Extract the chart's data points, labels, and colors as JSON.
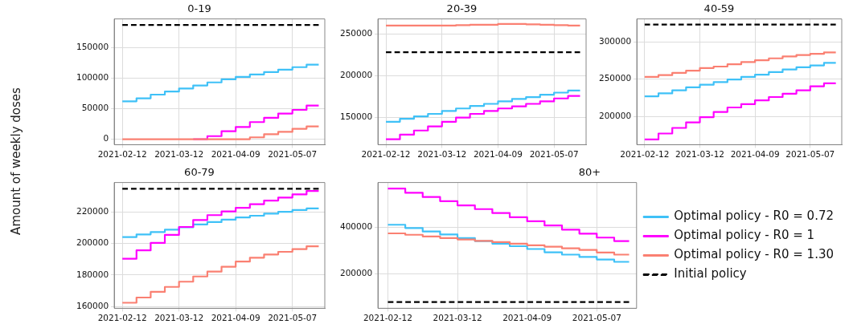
{
  "chart_data": [
    {
      "type": "step",
      "title": "0-19",
      "ylabel": "Amount of weekly doses",
      "x": [
        "2021-02-12",
        "2021-02-19",
        "2021-02-26",
        "2021-03-05",
        "2021-03-12",
        "2021-03-19",
        "2021-03-26",
        "2021-04-02",
        "2021-04-09",
        "2021-04-16",
        "2021-04-23",
        "2021-04-30",
        "2021-05-07",
        "2021-05-14",
        "2021-05-20"
      ],
      "series": [
        {
          "color": "#3fc1f7",
          "values": [
            62000,
            67000,
            73000,
            78000,
            83000,
            88000,
            93000,
            98000,
            102000,
            106000,
            110000,
            114000,
            118000,
            122000,
            122000
          ]
        },
        {
          "color": "#ff00ff",
          "values": [
            null,
            null,
            null,
            null,
            null,
            0,
            5000,
            13000,
            20000,
            28000,
            35000,
            42000,
            48000,
            55000,
            55000
          ]
        },
        {
          "color": "#fa8072",
          "values": [
            0,
            0,
            0,
            0,
            0,
            0,
            0,
            0,
            0,
            3000,
            8000,
            12000,
            17000,
            21000,
            21000
          ]
        },
        {
          "type": "line",
          "line_style": "dashed",
          "color": "#000000",
          "x": [
            "2021-02-12",
            "2021-05-20"
          ],
          "values": [
            187000,
            187000
          ]
        }
      ],
      "xlim": [
        "2021-02-08",
        "2021-05-23"
      ],
      "xticks": [
        "2021-02-12",
        "2021-03-12",
        "2021-04-09",
        "2021-05-07"
      ],
      "ylim": [
        -9000,
        197000
      ],
      "yticks": [
        0,
        50000,
        100000,
        150000
      ],
      "grid": true,
      "legend": false
    },
    {
      "type": "step",
      "title": "20-39",
      "x": [
        "2021-02-12",
        "2021-02-19",
        "2021-02-26",
        "2021-03-05",
        "2021-03-12",
        "2021-03-19",
        "2021-03-26",
        "2021-04-02",
        "2021-04-09",
        "2021-04-16",
        "2021-04-23",
        "2021-04-30",
        "2021-05-07",
        "2021-05-14",
        "2021-05-20"
      ],
      "series": [
        {
          "color": "#3fc1f7",
          "values": [
            144500,
            148000,
            151000,
            154000,
            157500,
            160500,
            163500,
            166000,
            169000,
            172000,
            174000,
            177000,
            179500,
            182000,
            182000
          ]
        },
        {
          "color": "#ff00ff",
          "values": [
            123500,
            129000,
            134000,
            139000,
            144500,
            149500,
            154000,
            157500,
            160500,
            163000,
            166000,
            169000,
            172500,
            175500,
            175500
          ]
        },
        {
          "color": "#fa8072",
          "values": [
            260000,
            260000,
            260000,
            260000,
            260000,
            260500,
            261000,
            261000,
            262000,
            262000,
            261500,
            261000,
            260500,
            260000,
            260000
          ]
        },
        {
          "type": "line",
          "line_style": "dashed",
          "color": "#000000",
          "x": [
            "2021-02-12",
            "2021-05-20"
          ],
          "values": [
            228000,
            228000
          ]
        }
      ],
      "xlim": [
        "2021-02-08",
        "2021-05-23"
      ],
      "xticks": [
        "2021-02-12",
        "2021-03-12",
        "2021-04-09",
        "2021-05-07"
      ],
      "ylim": [
        117000,
        268000
      ],
      "yticks": [
        150000,
        200000,
        250000
      ],
      "grid": true,
      "legend": false
    },
    {
      "type": "step",
      "title": "40-59",
      "x": [
        "2021-02-12",
        "2021-02-19",
        "2021-02-26",
        "2021-03-05",
        "2021-03-12",
        "2021-03-19",
        "2021-03-26",
        "2021-04-02",
        "2021-04-09",
        "2021-04-16",
        "2021-04-23",
        "2021-04-30",
        "2021-05-07",
        "2021-05-14",
        "2021-05-20"
      ],
      "series": [
        {
          "color": "#3fc1f7",
          "values": [
            227000,
            231000,
            235000,
            239000,
            242500,
            246000,
            249500,
            253000,
            256000,
            259500,
            263000,
            266000,
            268500,
            272000,
            272000
          ]
        },
        {
          "color": "#ff00ff",
          "values": [
            169000,
            177000,
            184500,
            192000,
            199000,
            206000,
            212000,
            216500,
            221500,
            226000,
            230500,
            235000,
            240500,
            244500,
            244500
          ]
        },
        {
          "color": "#fa8072",
          "values": [
            253000,
            255500,
            258500,
            261500,
            265000,
            267000,
            270000,
            273000,
            275500,
            278000,
            280500,
            282500,
            284000,
            286000,
            286000
          ]
        },
        {
          "type": "line",
          "line_style": "dashed",
          "color": "#000000",
          "x": [
            "2021-02-12",
            "2021-05-20"
          ],
          "values": [
            323500,
            323500
          ]
        }
      ],
      "xlim": [
        "2021-02-08",
        "2021-05-23"
      ],
      "xticks": [
        "2021-02-12",
        "2021-03-12",
        "2021-04-09",
        "2021-05-07"
      ],
      "ylim": [
        162000,
        331000
      ],
      "yticks": [
        200000,
        250000,
        300000
      ],
      "grid": true,
      "legend": false
    },
    {
      "type": "step",
      "title": "60-79",
      "x": [
        "2021-02-12",
        "2021-02-19",
        "2021-02-26",
        "2021-03-05",
        "2021-03-12",
        "2021-03-19",
        "2021-03-26",
        "2021-04-02",
        "2021-04-09",
        "2021-04-16",
        "2021-04-23",
        "2021-04-30",
        "2021-05-07",
        "2021-05-14",
        "2021-05-20"
      ],
      "series": [
        {
          "color": "#3fc1f7",
          "values": [
            204000,
            205700,
            207200,
            208700,
            210200,
            212000,
            213500,
            215000,
            216400,
            217500,
            218800,
            220000,
            221100,
            222100,
            222100
          ]
        },
        {
          "color": "#ff00ff",
          "values": [
            190300,
            195600,
            200300,
            205400,
            210400,
            214800,
            217900,
            220200,
            222500,
            224800,
            227100,
            229000,
            231000,
            233200,
            233200
          ]
        },
        {
          "color": "#fa8072",
          "values": [
            162500,
            165800,
            169400,
            172500,
            175800,
            179100,
            182200,
            185300,
            188500,
            191000,
            193000,
            194700,
            196400,
            198200,
            198200
          ]
        },
        {
          "type": "line",
          "line_style": "dashed",
          "color": "#000000",
          "x": [
            "2021-02-12",
            "2021-05-20"
          ],
          "values": [
            234600,
            234600
          ]
        }
      ],
      "xlim": [
        "2021-02-08",
        "2021-05-23"
      ],
      "xticks": [
        "2021-02-12",
        "2021-03-12",
        "2021-04-09",
        "2021-05-07"
      ],
      "ylim": [
        159000,
        238500
      ],
      "yticks": [
        160000,
        180000,
        200000,
        220000
      ],
      "grid": true,
      "legend": false
    },
    {
      "type": "step",
      "title": "80+",
      "x": [
        "2021-02-12",
        "2021-02-19",
        "2021-02-26",
        "2021-03-05",
        "2021-03-12",
        "2021-03-19",
        "2021-03-26",
        "2021-04-02",
        "2021-04-09",
        "2021-04-16",
        "2021-04-23",
        "2021-04-30",
        "2021-05-07",
        "2021-05-14",
        "2021-05-20"
      ],
      "series": [
        {
          "name": "Optimal policy - R0 = 0.72",
          "color": "#3fc1f7",
          "values": [
            411000,
            397000,
            382000,
            369000,
            354000,
            341000,
            330000,
            319000,
            307000,
            293000,
            283000,
            273000,
            262000,
            252000,
            252000
          ]
        },
        {
          "name": "Optimal policy - R0 = 1",
          "color": "#ff00ff",
          "values": [
            566000,
            548000,
            530000,
            512000,
            494000,
            478000,
            461000,
            443000,
            426000,
            408000,
            390000,
            373000,
            356000,
            341000,
            341000
          ]
        },
        {
          "name": "Optimal policy - R0 = 1.30",
          "color": "#fa8072",
          "values": [
            374000,
            368000,
            361000,
            354000,
            348000,
            342000,
            337000,
            330000,
            323000,
            317000,
            310000,
            303000,
            292000,
            283000,
            283000
          ]
        },
        {
          "name": "Initial policy",
          "type": "line",
          "line_style": "dashed",
          "color": "#000000",
          "x": [
            "2021-02-12",
            "2021-05-20"
          ],
          "values": [
            80000,
            80000
          ]
        }
      ],
      "xlim": [
        "2021-02-08",
        "2021-05-23"
      ],
      "xticks": [
        "2021-02-12",
        "2021-03-12",
        "2021-04-09",
        "2021-05-07"
      ],
      "ylim": [
        53000,
        592000
      ],
      "yticks": [
        200000,
        400000
      ],
      "grid": true,
      "legend": "right"
    }
  ]
}
